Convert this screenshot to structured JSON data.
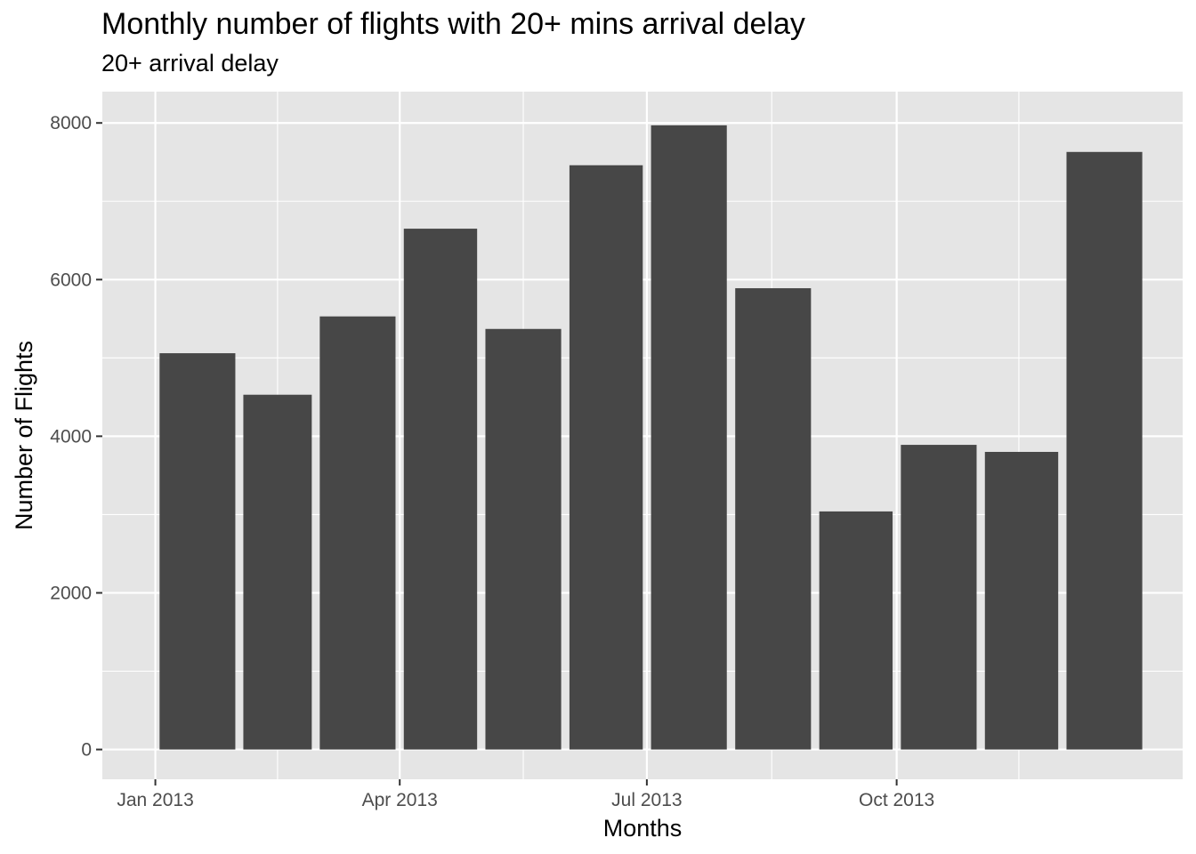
{
  "chart_data": {
    "type": "bar",
    "title": "Monthly number of flights with 20+ mins arrival delay",
    "subtitle": "20+ arrival delay",
    "xlabel": "Months",
    "ylabel": "Number of Flights",
    "x": [
      "2013-01",
      "2013-02",
      "2013-03",
      "2013-04",
      "2013-05",
      "2013-06",
      "2013-07",
      "2013-08",
      "2013-09",
      "2013-10",
      "2013-11",
      "2013-12"
    ],
    "values": [
      5060,
      4530,
      5530,
      6650,
      5370,
      7460,
      7970,
      5890,
      3040,
      3890,
      3800,
      7630
    ],
    "ylim": [
      -380,
      8400
    ],
    "yticks": [
      0,
      2000,
      4000,
      6000,
      8000
    ],
    "ytick_labels": [
      "0",
      "2000",
      "4000",
      "6000",
      "8000"
    ],
    "xticks": [
      "2013-01-01",
      "2013-04-01",
      "2013-07-01",
      "2013-10-01"
    ],
    "xtick_labels": [
      "Jan 2013",
      "Apr 2013",
      "Jul 2013",
      "Oct 2013"
    ],
    "grid": true,
    "colors": {
      "bar": "#474747",
      "panel": "#e5e5e5",
      "grid": "#ffffff"
    }
  }
}
